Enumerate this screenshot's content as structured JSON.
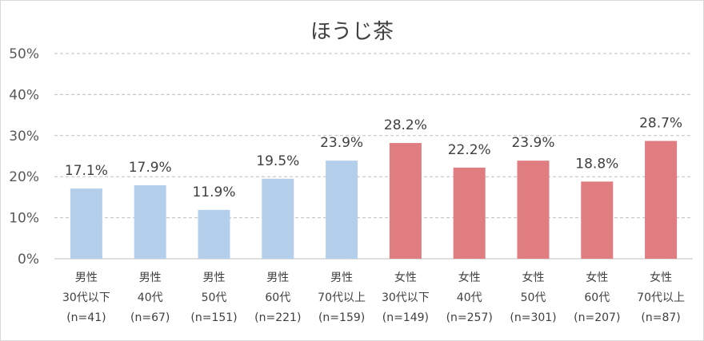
{
  "chart_data": {
    "type": "bar",
    "title": "ほうじ茶",
    "xlabel": "",
    "ylabel": "",
    "ylim": [
      0,
      50
    ],
    "yticks": [
      "0%",
      "10%",
      "20%",
      "30%",
      "40%",
      "50%"
    ],
    "grid": true,
    "colors": {
      "male": "#b3cfec",
      "female": "#e07d80"
    },
    "categories": [
      {
        "lines": [
          "男性",
          "30代以下",
          "(n=41)"
        ],
        "value": 17.1,
        "label": "17.1%",
        "group": "male"
      },
      {
        "lines": [
          "男性",
          "40代",
          "(n=67)"
        ],
        "value": 17.9,
        "label": "17.9%",
        "group": "male"
      },
      {
        "lines": [
          "男性",
          "50代",
          "(n=151)"
        ],
        "value": 11.9,
        "label": "11.9%",
        "group": "male"
      },
      {
        "lines": [
          "男性",
          "60代",
          "(n=221)"
        ],
        "value": 19.5,
        "label": "19.5%",
        "group": "male"
      },
      {
        "lines": [
          "男性",
          "70代以上",
          "(n=159)"
        ],
        "value": 23.9,
        "label": "23.9%",
        "group": "male"
      },
      {
        "lines": [
          "女性",
          "30代以下",
          "(n=149)"
        ],
        "value": 28.2,
        "label": "28.2%",
        "group": "female"
      },
      {
        "lines": [
          "女性",
          "40代",
          "(n=257)"
        ],
        "value": 22.2,
        "label": "22.2%",
        "group": "female"
      },
      {
        "lines": [
          "女性",
          "50代",
          "(n=301)"
        ],
        "value": 23.9,
        "label": "23.9%",
        "group": "female"
      },
      {
        "lines": [
          "女性",
          "60代",
          "(n=207)"
        ],
        "value": 18.8,
        "label": "18.8%",
        "group": "female"
      },
      {
        "lines": [
          "女性",
          "70代以上",
          "(n=87)"
        ],
        "value": 28.7,
        "label": "28.7%",
        "group": "female"
      }
    ]
  }
}
